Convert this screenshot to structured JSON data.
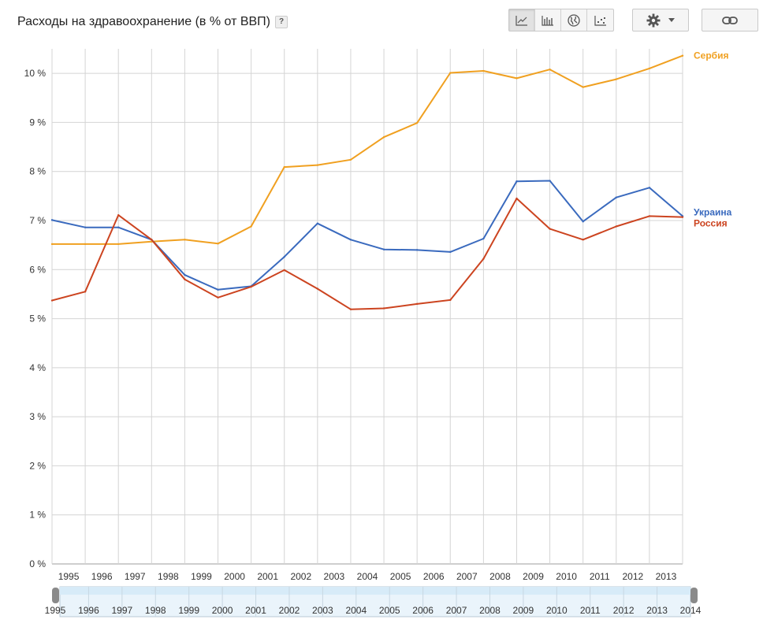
{
  "header": {
    "title": "Расходы на здравоохранение (в % от ВВП)",
    "help_label": "?"
  },
  "toolbar": {
    "chart_types": [
      {
        "name": "line-chart",
        "active": true
      },
      {
        "name": "bar-chart",
        "active": false
      },
      {
        "name": "map",
        "active": false
      },
      {
        "name": "scatter",
        "active": false
      }
    ]
  },
  "chart_data": {
    "type": "line",
    "title": "Расходы на здравоохранение (в % от ВВП)",
    "xlabel": "",
    "ylabel": "",
    "x": [
      "1995",
      "1996",
      "1997",
      "1998",
      "1999",
      "2000",
      "2001",
      "2002",
      "2003",
      "2004",
      "2005",
      "2006",
      "2007",
      "2008",
      "2009",
      "2010",
      "2011",
      "2012",
      "2013",
      "2014"
    ],
    "x_tick_labels": [
      "1995",
      "1996",
      "1997",
      "1998",
      "1999",
      "2000",
      "2001",
      "2002",
      "2003",
      "2004",
      "2005",
      "2006",
      "2007",
      "2008",
      "2009",
      "2010",
      "2011",
      "2012",
      "2013"
    ],
    "ylim": [
      0,
      10.5
    ],
    "y_ticks": [
      "0 %",
      "1 %",
      "2 %",
      "3 %",
      "4 %",
      "5 %",
      "6 %",
      "7 %",
      "8 %",
      "9 %",
      "10 %"
    ],
    "grid": true,
    "legend": "right-end-labels",
    "series": [
      {
        "name": "Сербия",
        "color": "#f0a020",
        "values": [
          6.52,
          6.52,
          6.52,
          6.57,
          6.61,
          6.53,
          6.88,
          8.09,
          8.13,
          8.24,
          8.7,
          8.99,
          10.01,
          10.05,
          9.9,
          10.08,
          9.72,
          9.88,
          10.1,
          10.36
        ]
      },
      {
        "name": "Украина",
        "color": "#3a6abe",
        "values": [
          7.01,
          6.86,
          6.86,
          6.61,
          5.89,
          5.59,
          5.66,
          6.26,
          6.94,
          6.61,
          6.41,
          6.4,
          6.36,
          6.63,
          7.8,
          7.81,
          6.98,
          7.47,
          7.67,
          7.09
        ]
      },
      {
        "name": "Россия",
        "color": "#cc4420",
        "values": [
          5.37,
          5.55,
          7.11,
          6.61,
          5.8,
          5.43,
          5.65,
          5.99,
          5.61,
          5.19,
          5.21,
          5.3,
          5.38,
          6.22,
          7.45,
          6.83,
          6.61,
          6.88,
          7.09,
          7.07
        ]
      }
    ],
    "range_selector": {
      "labels": [
        "1995",
        "1996",
        "1997",
        "1998",
        "1999",
        "2000",
        "2001",
        "2002",
        "2003",
        "2004",
        "2005",
        "2006",
        "2007",
        "2008",
        "2009",
        "2010",
        "2011",
        "2012",
        "2013",
        "2014"
      ]
    }
  }
}
